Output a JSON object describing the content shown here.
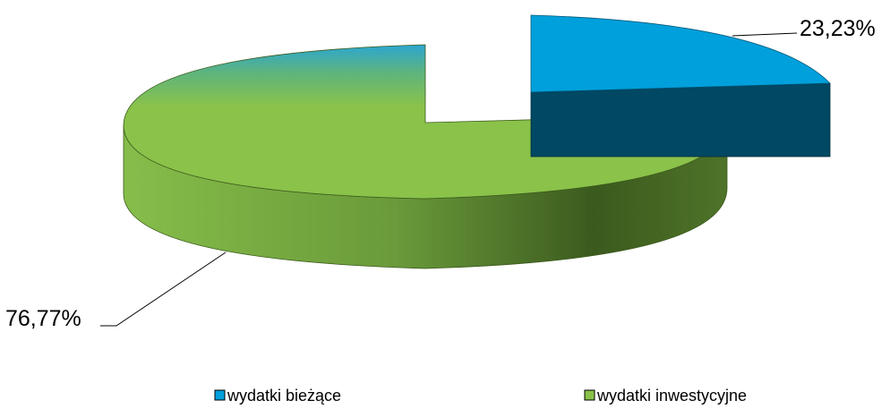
{
  "chart_data": {
    "type": "pie",
    "style": "3d-exploded",
    "categories": [
      "wydatki bieżące",
      "wydatki inwestycyjne"
    ],
    "values": [
      23.23,
      76.77
    ],
    "labels": [
      "23,23%",
      "76,77%"
    ],
    "colors": [
      "#00A0DC",
      "#8AC24A"
    ],
    "legend": {
      "position": "bottom",
      "entries": [
        {
          "label": "wydatki bieżące",
          "color": "#00A0DC"
        },
        {
          "label": "wydatki inwestycyjne",
          "color": "#8AC24A"
        }
      ]
    }
  }
}
